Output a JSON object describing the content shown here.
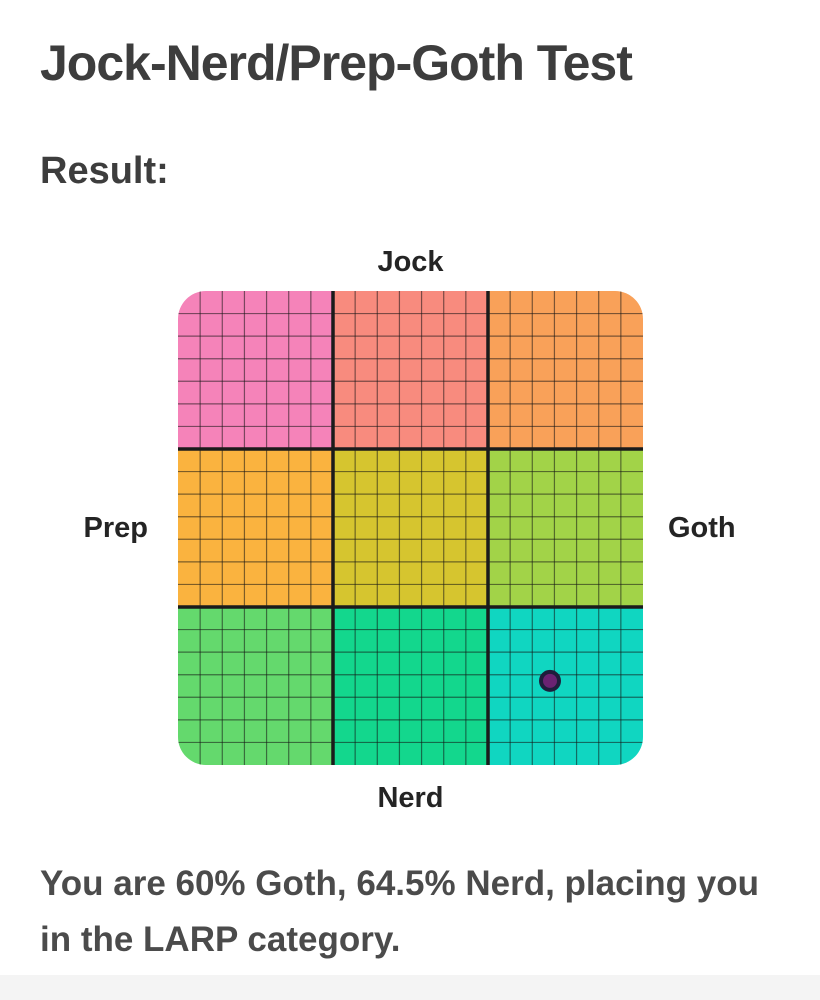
{
  "page": {
    "title": "Jock-Nerd/Prep-Goth Test",
    "result_heading": "Result:",
    "result_text": "You are 60% Goth, 64.5% Nerd, placing you in the LARP category."
  },
  "chart_data": {
    "type": "scatter",
    "title": "Jock-Nerd/Prep-Goth quadrant grid",
    "axis_labels": {
      "top": "Jock",
      "bottom": "Nerd",
      "left": "Prep",
      "right": "Goth"
    },
    "xlim": [
      -100,
      100
    ],
    "ylim": [
      -100,
      100
    ],
    "points": [
      {
        "goth_pct": 60,
        "nerd_pct": 64.5,
        "category": "LARP"
      }
    ],
    "grid": {
      "minor_cols": 21,
      "minor_rows": 21,
      "major_divisions": 3
    },
    "cell_colors": [
      [
        "#F583B9",
        "#F88B7E",
        "#F9A159"
      ],
      [
        "#FAB33F",
        "#D6C52F",
        "#A2D348"
      ],
      [
        "#64D96D",
        "#13D78D",
        "#10D6C1"
      ]
    ],
    "minor_line_color": "rgba(20,20,20,0.55)",
    "major_line_color": "#1b1b1b",
    "point_fill": "#6B2272",
    "point_stroke": "#1E1E3C",
    "corner_radius": 28
  }
}
